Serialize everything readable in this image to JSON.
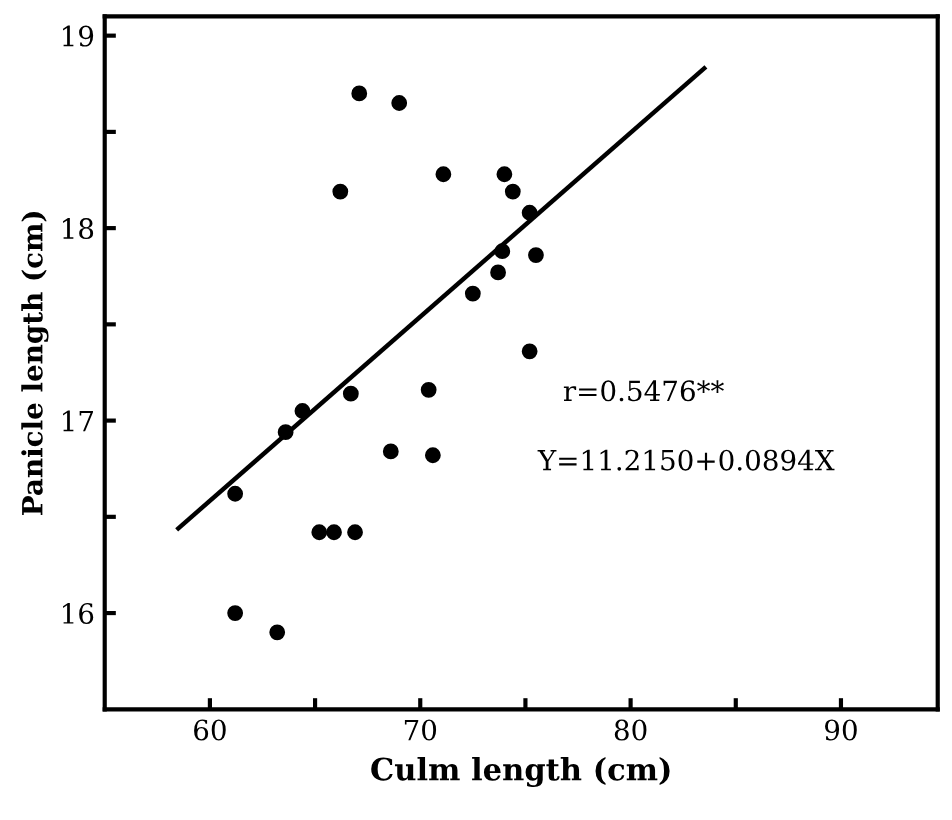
{
  "chart_data": {
    "type": "scatter",
    "xlabel": "Culm length (cm)",
    "ylabel": "Panicle length (cm)",
    "xlim": [
      55,
      94.6
    ],
    "ylim": [
      15.5,
      19.1
    ],
    "xticks": [
      60,
      {
        "value": 65,
        "label": null
      },
      70,
      {
        "value": 75,
        "label": null
      },
      80,
      {
        "value": 85,
        "label": null
      },
      90
    ],
    "yticks": [
      16,
      {
        "value": 16.5,
        "label": null
      },
      17,
      {
        "value": 17.5,
        "label": null
      },
      18,
      {
        "value": 18.5,
        "label": null
      },
      19
    ],
    "grid": false,
    "legend": false,
    "series": [
      {
        "color": "#000000",
        "marker": "circle",
        "x": [
          67.1,
          69.0,
          66.2,
          71.1,
          74.0,
          74.4,
          75.2,
          73.9,
          75.5,
          73.7,
          72.5,
          75.2,
          66.7,
          70.4,
          64.4,
          63.6,
          68.6,
          70.6,
          61.2,
          65.2,
          65.9,
          66.9,
          61.2,
          63.2
        ],
        "values": [
          18.7,
          18.65,
          18.19,
          18.28,
          18.28,
          18.19,
          18.08,
          17.88,
          17.86,
          17.77,
          17.66,
          17.36,
          17.14,
          17.16,
          17.05,
          16.94,
          16.84,
          16.82,
          16.62,
          16.42,
          16.42,
          16.42,
          16.0,
          15.9
        ]
      },
      {
        "type": "line",
        "color": "#000000",
        "marker": "none",
        "line_style": "solid",
        "x": [
          58.5,
          83.5
        ],
        "values": [
          16.44,
          18.83
        ]
      }
    ],
    "annotations": [
      "r=0.5476**",
      "Y=11.2150+0.0894X"
    ]
  }
}
